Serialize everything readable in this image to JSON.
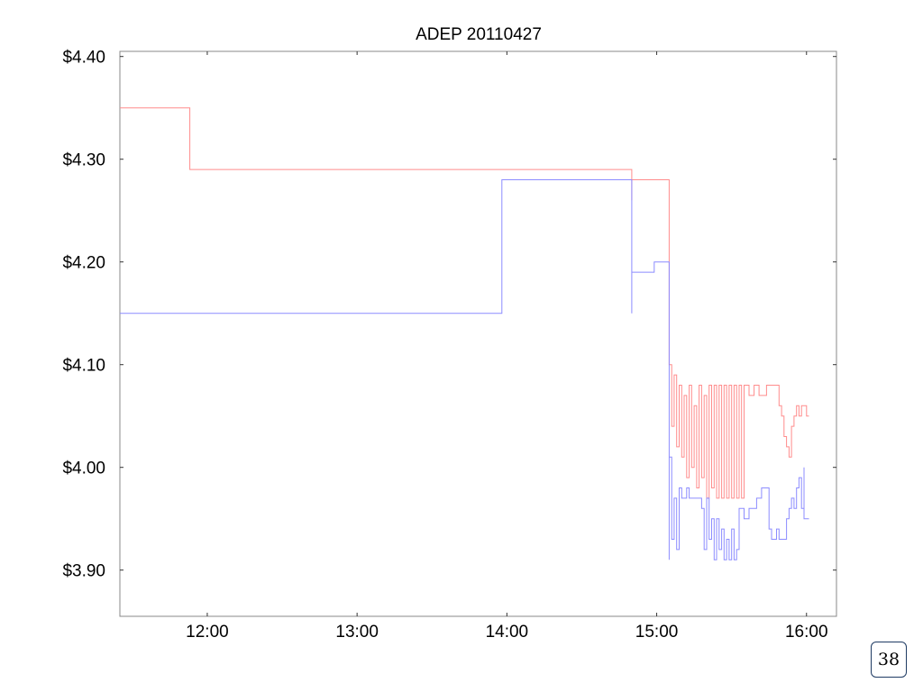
{
  "chart_data": {
    "type": "line",
    "title": "ADEP 20110427",
    "xlabel": "",
    "ylabel": "",
    "x_ticks": [
      "12:00",
      "13:00",
      "14:00",
      "15:00",
      "16:00"
    ],
    "y_ticks": [
      "$4.40",
      "$4.30",
      "$4.20",
      "$4.10",
      "$4.00",
      "$3.90"
    ],
    "xlim": [
      "11:25",
      "16:12"
    ],
    "ylim": [
      3.855,
      4.405
    ],
    "grid": false,
    "legend": "none",
    "series": [
      {
        "color": "#ff8c8c",
        "style": "step",
        "points": [
          [
            "11:25",
            4.35
          ],
          [
            "11:53",
            4.35
          ],
          [
            "11:53",
            4.29
          ],
          [
            "14:50",
            4.29
          ],
          [
            "14:50",
            4.26
          ],
          [
            "14:50",
            4.28
          ],
          [
            "15:05",
            4.28
          ],
          [
            "15:05",
            4.1
          ],
          [
            "15:06",
            4.1
          ],
          [
            "15:06",
            4.04
          ],
          [
            "15:07",
            4.04
          ],
          [
            "15:07",
            4.09
          ],
          [
            "15:08",
            4.09
          ],
          [
            "15:08",
            4.02
          ],
          [
            "15:09",
            4.02
          ],
          [
            "15:09",
            4.08
          ],
          [
            "15:10",
            4.08
          ],
          [
            "15:10",
            4.01
          ],
          [
            "15:11",
            4.01
          ],
          [
            "15:11",
            4.07
          ],
          [
            "15:12",
            4.07
          ],
          [
            "15:12",
            3.99
          ],
          [
            "15:13",
            3.99
          ],
          [
            "15:13",
            4.08
          ],
          [
            "15:14",
            4.08
          ],
          [
            "15:14",
            4.0
          ],
          [
            "15:15",
            4.0
          ],
          [
            "15:15",
            4.06
          ],
          [
            "15:16",
            4.06
          ],
          [
            "15:16",
            3.98
          ],
          [
            "15:17",
            3.98
          ],
          [
            "15:17",
            4.08
          ],
          [
            "15:18",
            4.08
          ],
          [
            "15:18",
            3.99
          ],
          [
            "15:19",
            3.99
          ],
          [
            "15:19",
            4.07
          ],
          [
            "15:20",
            4.07
          ],
          [
            "15:20",
            3.97
          ],
          [
            "15:21",
            3.97
          ],
          [
            "15:21",
            4.08
          ],
          [
            "15:22",
            4.08
          ],
          [
            "15:22",
            3.98
          ],
          [
            "15:23",
            3.98
          ],
          [
            "15:23",
            4.08
          ],
          [
            "15:24",
            4.08
          ],
          [
            "15:24",
            3.97
          ],
          [
            "15:25",
            3.97
          ],
          [
            "15:25",
            4.08
          ],
          [
            "15:26",
            4.08
          ],
          [
            "15:26",
            3.97
          ],
          [
            "15:27",
            3.97
          ],
          [
            "15:27",
            4.08
          ],
          [
            "15:28",
            4.08
          ],
          [
            "15:28",
            3.97
          ],
          [
            "15:29",
            3.97
          ],
          [
            "15:29",
            4.08
          ],
          [
            "15:30",
            4.08
          ],
          [
            "15:30",
            3.97
          ],
          [
            "15:31",
            3.97
          ],
          [
            "15:31",
            4.08
          ],
          [
            "15:32",
            4.08
          ],
          [
            "15:32",
            3.97
          ],
          [
            "15:33",
            3.97
          ],
          [
            "15:33",
            4.08
          ],
          [
            "15:34",
            4.08
          ],
          [
            "15:34",
            3.97
          ],
          [
            "15:35",
            3.97
          ],
          [
            "15:35",
            4.08
          ],
          [
            "15:37",
            4.08
          ],
          [
            "15:37",
            4.07
          ],
          [
            "15:39",
            4.07
          ],
          [
            "15:39",
            4.08
          ],
          [
            "15:41",
            4.08
          ],
          [
            "15:41",
            4.07
          ],
          [
            "15:44",
            4.07
          ],
          [
            "15:44",
            4.08
          ],
          [
            "15:49",
            4.08
          ],
          [
            "15:49",
            4.06
          ],
          [
            "15:50",
            4.06
          ],
          [
            "15:50",
            4.05
          ],
          [
            "15:51",
            4.05
          ],
          [
            "15:51",
            4.03
          ],
          [
            "15:52",
            4.03
          ],
          [
            "15:52",
            4.02
          ],
          [
            "15:53",
            4.02
          ],
          [
            "15:53",
            4.01
          ],
          [
            "15:54",
            4.01
          ],
          [
            "15:54",
            4.04
          ],
          [
            "15:55",
            4.04
          ],
          [
            "15:55",
            4.05
          ],
          [
            "15:56",
            4.05
          ],
          [
            "15:56",
            4.06
          ],
          [
            "15:57",
            4.06
          ],
          [
            "15:57",
            4.05
          ],
          [
            "15:58",
            4.05
          ],
          [
            "15:58",
            4.06
          ],
          [
            "16:00",
            4.06
          ],
          [
            "16:00",
            4.05
          ],
          [
            "16:01",
            4.05
          ]
        ]
      },
      {
        "color": "#8c8cff",
        "style": "step",
        "points": [
          [
            "11:25",
            4.15
          ],
          [
            "13:58",
            4.15
          ],
          [
            "13:58",
            4.28
          ],
          [
            "14:50",
            4.28
          ],
          [
            "14:50",
            4.15
          ],
          [
            "14:50",
            4.19
          ],
          [
            "14:59",
            4.19
          ],
          [
            "14:59",
            4.2
          ],
          [
            "15:05",
            4.2
          ],
          [
            "15:05",
            3.91
          ],
          [
            "15:05",
            4.01
          ],
          [
            "15:06",
            4.01
          ],
          [
            "15:06",
            3.93
          ],
          [
            "15:07",
            3.93
          ],
          [
            "15:07",
            3.97
          ],
          [
            "15:08",
            3.97
          ],
          [
            "15:08",
            3.92
          ],
          [
            "15:09",
            3.92
          ],
          [
            "15:09",
            3.98
          ],
          [
            "15:10",
            3.98
          ],
          [
            "15:10",
            3.97
          ],
          [
            "15:12",
            3.97
          ],
          [
            "15:12",
            3.98
          ],
          [
            "15:13",
            3.98
          ],
          [
            "15:13",
            3.97
          ],
          [
            "15:18",
            3.97
          ],
          [
            "15:18",
            3.96
          ],
          [
            "15:19",
            3.96
          ],
          [
            "15:19",
            3.92
          ],
          [
            "15:20",
            3.92
          ],
          [
            "15:20",
            3.97
          ],
          [
            "15:21",
            3.97
          ],
          [
            "15:21",
            3.93
          ],
          [
            "15:22",
            3.93
          ],
          [
            "15:22",
            3.95
          ],
          [
            "15:23",
            3.95
          ],
          [
            "15:23",
            3.91
          ],
          [
            "15:24",
            3.91
          ],
          [
            "15:24",
            3.95
          ],
          [
            "15:25",
            3.95
          ],
          [
            "15:25",
            3.92
          ],
          [
            "15:26",
            3.92
          ],
          [
            "15:26",
            3.94
          ],
          [
            "15:27",
            3.94
          ],
          [
            "15:27",
            3.91
          ],
          [
            "15:28",
            3.91
          ],
          [
            "15:28",
            3.93
          ],
          [
            "15:29",
            3.93
          ],
          [
            "15:29",
            3.91
          ],
          [
            "15:30",
            3.91
          ],
          [
            "15:30",
            3.94
          ],
          [
            "15:31",
            3.94
          ],
          [
            "15:31",
            3.91
          ],
          [
            "15:32",
            3.91
          ],
          [
            "15:32",
            3.92
          ],
          [
            "15:33",
            3.92
          ],
          [
            "15:33",
            3.96
          ],
          [
            "15:35",
            3.96
          ],
          [
            "15:35",
            3.95
          ],
          [
            "15:37",
            3.95
          ],
          [
            "15:37",
            3.96
          ],
          [
            "15:40",
            3.96
          ],
          [
            "15:40",
            3.97
          ],
          [
            "15:42",
            3.97
          ],
          [
            "15:42",
            3.98
          ],
          [
            "15:45",
            3.98
          ],
          [
            "15:45",
            3.94
          ],
          [
            "15:46",
            3.94
          ],
          [
            "15:46",
            3.93
          ],
          [
            "15:48",
            3.93
          ],
          [
            "15:48",
            3.94
          ],
          [
            "15:49",
            3.94
          ],
          [
            "15:49",
            3.93
          ],
          [
            "15:52",
            3.93
          ],
          [
            "15:52",
            3.95
          ],
          [
            "15:53",
            3.95
          ],
          [
            "15:53",
            3.96
          ],
          [
            "15:54",
            3.96
          ],
          [
            "15:54",
            3.97
          ],
          [
            "15:55",
            3.97
          ],
          [
            "15:55",
            3.96
          ],
          [
            "15:56",
            3.96
          ],
          [
            "15:56",
            3.98
          ],
          [
            "15:57",
            3.98
          ],
          [
            "15:57",
            3.99
          ],
          [
            "15:58",
            3.99
          ],
          [
            "15:58",
            3.96
          ],
          [
            "15:59",
            3.96
          ],
          [
            "15:59",
            4.0
          ],
          [
            "15:59",
            3.95
          ],
          [
            "16:01",
            3.95
          ]
        ]
      }
    ]
  },
  "page": {
    "number": "38"
  }
}
